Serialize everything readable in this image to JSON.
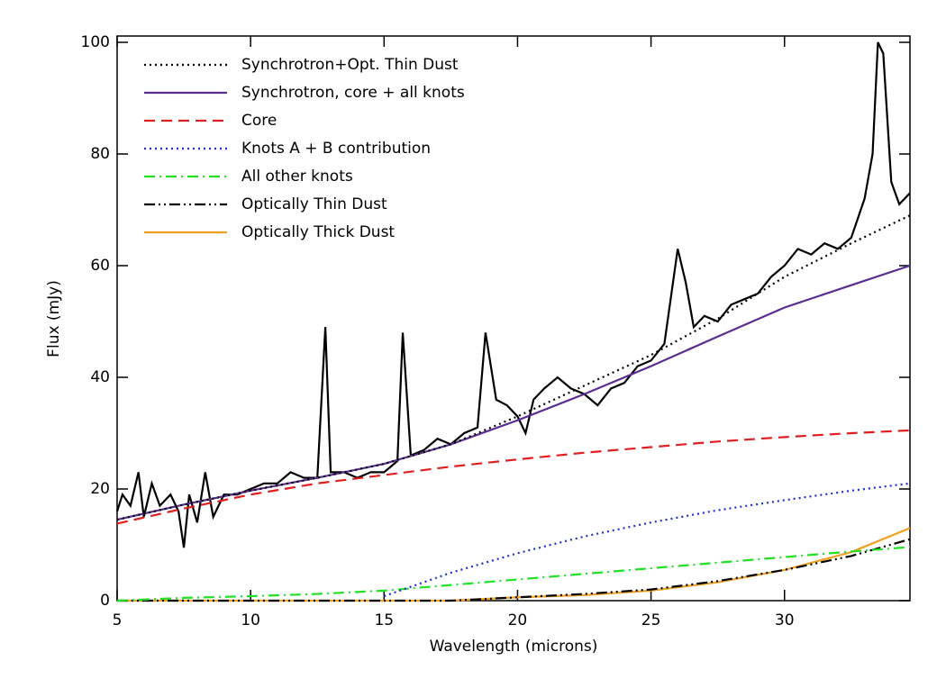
{
  "chart_data": {
    "type": "line",
    "xlabel": "Wavelength (microns)",
    "ylabel": "Flux (mJy)",
    "xlim": [
      5,
      34.7
    ],
    "ylim": [
      0,
      100
    ],
    "xticks": [
      5,
      10,
      15,
      20,
      25,
      30
    ],
    "yticks": [
      0,
      20,
      40,
      60,
      80,
      100
    ],
    "legend": "upper left",
    "x": [
      5,
      7.5,
      10,
      12.5,
      15,
      17.5,
      20,
      22.5,
      25,
      27.5,
      30,
      32.5,
      34.7
    ],
    "series": [
      {
        "name": "Synchrotron+Opt. Thin Dust",
        "color": "#000000",
        "style": "dotted",
        "values": [
          14.5,
          17.2,
          19.7,
          22,
          24.5,
          28,
          33,
          38.5,
          44,
          50.5,
          58,
          64,
          69
        ]
      },
      {
        "name": "Synchrotron, core + all knots",
        "color": "#5b2c91",
        "style": "solid",
        "values": [
          14.5,
          17.2,
          19.7,
          22,
          24.5,
          28,
          32.3,
          37,
          42,
          47.3,
          52.5,
          56.5,
          60
        ]
      },
      {
        "name": "Core",
        "color": "#e02020",
        "style": "dashed",
        "values": [
          13.8,
          16.5,
          19,
          21,
          22.5,
          24,
          25.3,
          26.5,
          27.5,
          28.5,
          29.3,
          30,
          30.5
        ]
      },
      {
        "name": "Knots A + B contribution",
        "color": "#1f2fd0",
        "style": "dotted",
        "values": [
          null,
          null,
          null,
          null,
          0.8,
          5,
          8.5,
          11.5,
          14,
          16.2,
          18,
          19.7,
          21
        ]
      },
      {
        "name": "All other knots",
        "color": "#22e022",
        "style": "dashdot",
        "values": [
          0,
          0.5,
          0.8,
          1.2,
          1.8,
          2.8,
          3.8,
          4.8,
          5.8,
          6.8,
          7.8,
          8.8,
          9.6
        ]
      },
      {
        "name": "Optically Thin Dust",
        "color": "#000000",
        "style": "dashdotdot",
        "values": [
          0,
          0,
          0,
          0,
          0,
          0,
          0.6,
          1.2,
          2,
          3.5,
          5.5,
          8,
          11
        ]
      },
      {
        "name": "Optically Thick Dust",
        "color": "#f0a020",
        "style": "solid",
        "values": [
          0,
          0,
          0,
          0,
          0,
          0,
          0.6,
          1,
          1.8,
          3.3,
          5.5,
          8.7,
          13
        ]
      },
      {
        "color": "#000000",
        "style": "solid",
        "x": [
          5,
          5.2,
          5.5,
          5.8,
          6,
          6.3,
          6.6,
          7,
          7.3,
          7.5,
          7.7,
          8,
          8.3,
          8.6,
          9,
          9.5,
          10,
          10.5,
          11,
          11.5,
          12,
          12.5,
          12.8,
          13,
          13.5,
          14,
          14.5,
          15,
          15.5,
          15.7,
          16,
          16.5,
          17,
          17.5,
          18,
          18.5,
          18.8,
          19.2,
          19.6,
          20,
          20.3,
          20.6,
          21,
          21.5,
          22,
          22.5,
          23,
          23.5,
          24,
          24.5,
          25,
          25.5,
          26,
          26.3,
          26.6,
          27,
          27.5,
          28,
          28.5,
          29,
          29.5,
          30,
          30.5,
          31,
          31.5,
          32,
          32.5,
          33,
          33.3,
          33.5,
          33.7,
          34,
          34.3,
          34.7
        ],
        "values": [
          16,
          19,
          17,
          23,
          15,
          21,
          17,
          19,
          16,
          9.5,
          19,
          14,
          23,
          15,
          19,
          19,
          20,
          21,
          21,
          23,
          22,
          22,
          49,
          23,
          23,
          22,
          23,
          23,
          25,
          48,
          26,
          27,
          29,
          28,
          30,
          31,
          48,
          36,
          35,
          33,
          30,
          36,
          38,
          40,
          38,
          37,
          35,
          38,
          39,
          42,
          43,
          46,
          63,
          57,
          49,
          51,
          50,
          53,
          54,
          55,
          58,
          60,
          63,
          62,
          64,
          63,
          65,
          72,
          80,
          100,
          98,
          75,
          71,
          73
        ]
      }
    ]
  }
}
